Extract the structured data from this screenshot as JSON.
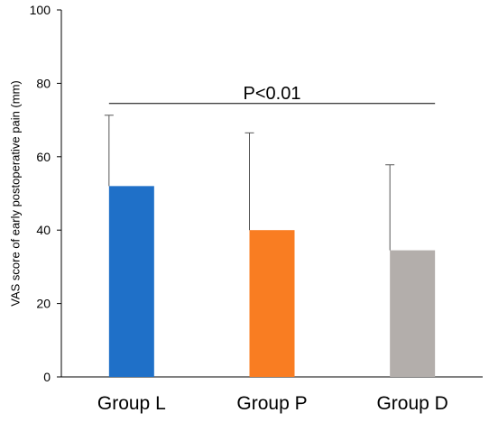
{
  "chart_data": {
    "type": "bar",
    "title": "",
    "xlabel": "",
    "ylabel": "VAS score of early postoperative pain (mm)",
    "ylim": [
      0,
      100
    ],
    "yticks": [
      0,
      20,
      40,
      60,
      80,
      100
    ],
    "categories": [
      "Group L",
      "Group P",
      "Group D"
    ],
    "values": [
      52,
      40,
      34.5
    ],
    "error_upper": [
      71.3,
      66.5,
      57.8
    ],
    "colors": [
      "#1f70c8",
      "#f97d22",
      "#b3aeab"
    ],
    "grid": false,
    "annotation": {
      "text": "P<0.01",
      "y": 74.5,
      "from_category": "Group L",
      "to_category": "Group D"
    }
  }
}
